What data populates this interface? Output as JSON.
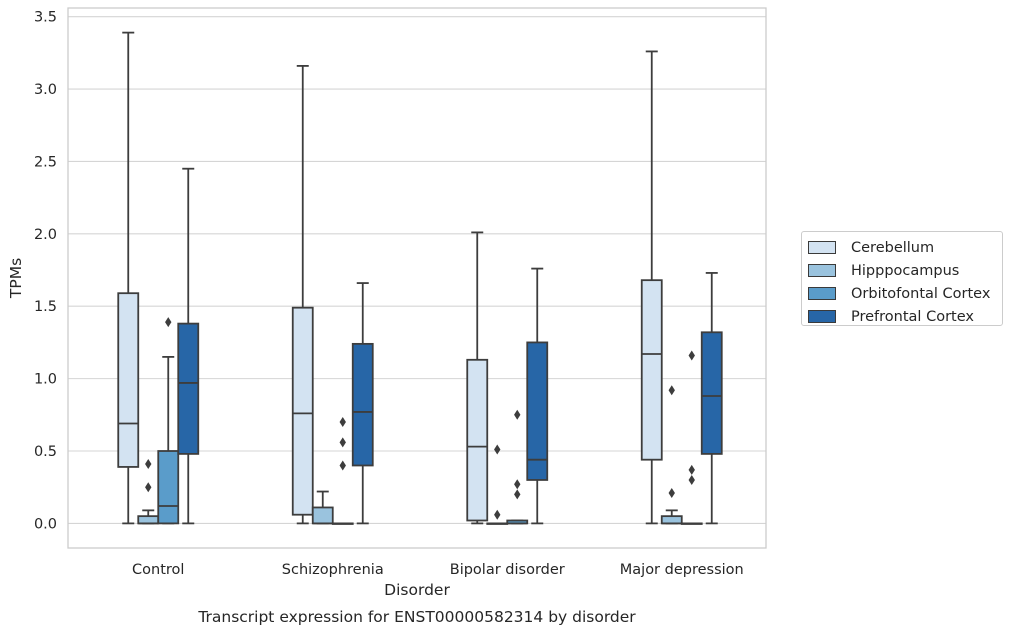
{
  "chart_data": {
    "type": "box",
    "title": "Transcript expression for ENST00000582314 by disorder",
    "xlabel": "Disorder",
    "ylabel": "TPMs",
    "ylim": [
      -0.17,
      3.56
    ],
    "yticks": [
      "0.0",
      "0.5",
      "1.0",
      "1.5",
      "2.0",
      "2.5",
      "3.0",
      "3.5"
    ],
    "categories": [
      "Control",
      "Schizophrenia",
      "Bipolar disorder",
      "Major depression"
    ],
    "legend_position": "right, outside plot",
    "grid": true,
    "series": [
      {
        "name": "Cerebellum",
        "color": "#d3e3f2",
        "boxes": [
          {
            "whisker_low": 0.0,
            "q1": 0.39,
            "median": 0.69,
            "q3": 1.59,
            "whisker_high": 3.39,
            "outliers": []
          },
          {
            "whisker_low": 0.0,
            "q1": 0.06,
            "median": 0.76,
            "q3": 1.49,
            "whisker_high": 3.16,
            "outliers": []
          },
          {
            "whisker_low": 0.0,
            "q1": 0.02,
            "median": 0.53,
            "q3": 1.13,
            "whisker_high": 2.01,
            "outliers": []
          },
          {
            "whisker_low": 0.0,
            "q1": 0.44,
            "median": 1.17,
            "q3": 1.68,
            "whisker_high": 3.26,
            "outliers": []
          }
        ]
      },
      {
        "name": "Hipppocampus",
        "color": "#9ac3de",
        "boxes": [
          {
            "whisker_low": 0.0,
            "q1": 0.0,
            "median": 0.0,
            "q3": 0.05,
            "whisker_high": 0.09,
            "outliers": [
              0.25,
              0.41
            ]
          },
          {
            "whisker_low": 0.0,
            "q1": 0.0,
            "median": 0.0,
            "q3": 0.11,
            "whisker_high": 0.22,
            "outliers": []
          },
          {
            "whisker_low": 0.0,
            "q1": 0.0,
            "median": 0.0,
            "q3": 0.0,
            "whisker_high": 0.0,
            "outliers": [
              0.06,
              0.51
            ]
          },
          {
            "whisker_low": 0.0,
            "q1": 0.0,
            "median": 0.0,
            "q3": 0.05,
            "whisker_high": 0.09,
            "outliers": [
              0.21,
              0.92
            ]
          }
        ]
      },
      {
        "name": "Orbitofontal Cortex",
        "color": "#5a9cca",
        "boxes": [
          {
            "whisker_low": 0.0,
            "q1": 0.0,
            "median": 0.12,
            "q3": 0.5,
            "whisker_high": 1.15,
            "outliers": [
              1.39
            ]
          },
          {
            "whisker_low": 0.0,
            "q1": 0.0,
            "median": 0.0,
            "q3": 0.0,
            "whisker_high": 0.0,
            "outliers": [
              0.4,
              0.56,
              0.7
            ]
          },
          {
            "whisker_low": 0.0,
            "q1": 0.0,
            "median": 0.0,
            "q3": 0.02,
            "whisker_high": 0.02,
            "outliers": [
              0.2,
              0.27,
              0.75
            ]
          },
          {
            "whisker_low": 0.0,
            "q1": 0.0,
            "median": 0.0,
            "q3": 0.0,
            "whisker_high": 0.0,
            "outliers": [
              0.3,
              0.37,
              1.16
            ]
          }
        ]
      },
      {
        "name": "Prefrontal Cortex",
        "color": "#2766a7",
        "boxes": [
          {
            "whisker_low": 0.0,
            "q1": 0.48,
            "median": 0.97,
            "q3": 1.38,
            "whisker_high": 2.45,
            "outliers": []
          },
          {
            "whisker_low": 0.0,
            "q1": 0.4,
            "median": 0.77,
            "q3": 1.24,
            "whisker_high": 1.66,
            "outliers": []
          },
          {
            "whisker_low": 0.0,
            "q1": 0.3,
            "median": 0.44,
            "q3": 1.25,
            "whisker_high": 1.76,
            "outliers": []
          },
          {
            "whisker_low": 0.0,
            "q1": 0.48,
            "median": 0.88,
            "q3": 1.32,
            "whisker_high": 1.73,
            "outliers": []
          }
        ]
      }
    ]
  }
}
